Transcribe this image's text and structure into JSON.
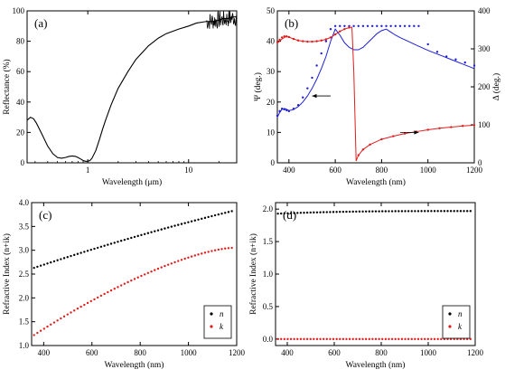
{
  "chart_data": [
    {
      "panel": "(a)",
      "type": "line",
      "xlabel": "Wavelength (μm)",
      "ylabel": "Reflectance (%)",
      "xscale": "log",
      "xlim": [
        0.25,
        30
      ],
      "ylim": [
        0,
        100
      ],
      "xticks": [
        1,
        10
      ],
      "yticks": [
        0,
        20,
        40,
        60,
        80,
        100
      ],
      "series": [
        {
          "color": "#000000",
          "x": [
            0.25,
            0.27,
            0.29,
            0.31,
            0.35,
            0.4,
            0.45,
            0.5,
            0.55,
            0.6,
            0.65,
            0.7,
            0.75,
            0.8,
            0.85,
            0.9,
            0.95,
            1.0,
            1.05,
            1.1,
            1.2,
            1.3,
            1.4,
            1.5,
            1.7,
            2.0,
            2.5,
            3.0,
            4.0,
            5.0,
            6.0,
            8.0,
            10.0,
            12.0,
            15.0,
            18.0,
            20.0,
            22.0,
            25.0,
            28.0,
            30.0
          ],
          "y": [
            28,
            30,
            29,
            26,
            19,
            11,
            6,
            3.5,
            3,
            3.5,
            4.2,
            4.5,
            4.3,
            3.5,
            2.5,
            1.5,
            1,
            1,
            1.5,
            3,
            8,
            15,
            22,
            28,
            38,
            49,
            60,
            68,
            77,
            82,
            85,
            88,
            90,
            92,
            93,
            93,
            94,
            95,
            95,
            96,
            96
          ]
        }
      ]
    },
    {
      "panel": "(b)",
      "type": "line",
      "xlabel": "Wavelength (nm)",
      "ylabel": "Ψ (deg.)",
      "y2label": "Δ (deg.)",
      "xlim": [
        350,
        1200
      ],
      "ylim": [
        0,
        50
      ],
      "y2lim": [
        0,
        400
      ],
      "xticks": [
        400,
        600,
        800,
        1000,
        1200
      ],
      "yticks": [
        0,
        10,
        20,
        30,
        40,
        50
      ],
      "y2ticks": [
        0,
        100,
        200,
        300,
        400
      ],
      "series": [
        {
          "axis": "left",
          "color": "#1f1fd6",
          "style": "line",
          "x": [
            350,
            360,
            370,
            380,
            390,
            400,
            420,
            440,
            460,
            480,
            500,
            520,
            540,
            560,
            580,
            600,
            620,
            640,
            660,
            680,
            700,
            720,
            740,
            760,
            780,
            800,
            820,
            840,
            860,
            880,
            900,
            950,
            1000,
            1050,
            1100,
            1150,
            1200
          ],
          "y": [
            15,
            16.5,
            17.6,
            17.9,
            17.6,
            17.2,
            17.5,
            18.5,
            20,
            22,
            24.5,
            27.5,
            31,
            35,
            40,
            44,
            42,
            39.5,
            38,
            37.2,
            37.2,
            38,
            39.5,
            41,
            42.5,
            43.5,
            44,
            43,
            42,
            41.2,
            40.5,
            38.7,
            37,
            35.5,
            34,
            32.5,
            31
          ]
        },
        {
          "axis": "left",
          "color": "#1f1fd6",
          "style": "dots",
          "x": [
            350,
            360,
            370,
            380,
            390,
            400,
            420,
            440,
            460,
            480,
            500,
            520,
            540,
            560,
            580,
            600,
            620,
            640,
            660,
            680,
            700,
            720,
            740,
            760,
            780,
            800,
            820,
            840,
            860,
            880,
            900,
            920,
            940,
            960,
            1000,
            1040,
            1080,
            1120,
            1160,
            1200
          ],
          "y": [
            15.5,
            17,
            17.8,
            17.6,
            17.3,
            17,
            17.8,
            19,
            21.5,
            24.5,
            28,
            32,
            36,
            40,
            44,
            45,
            45,
            45,
            45,
            45,
            45,
            45,
            45,
            45,
            45,
            45,
            45,
            45,
            45,
            45,
            45,
            45,
            45,
            45,
            39,
            36.5,
            35,
            34,
            33,
            32
          ]
        },
        {
          "axis": "right",
          "color": "#e11d1d",
          "style": "line",
          "x": [
            350,
            360,
            370,
            380,
            390,
            400,
            420,
            440,
            460,
            480,
            500,
            520,
            540,
            560,
            580,
            600,
            620,
            640,
            660,
            672,
            680,
            690,
            700,
            720,
            750,
            800,
            850,
            900,
            950,
            1000,
            1050,
            1100,
            1150,
            1200
          ],
          "y": [
            315,
            320,
            326,
            330,
            332,
            331,
            326,
            322,
            320,
            319,
            319,
            320,
            322,
            325,
            330,
            338,
            346,
            352,
            356,
            357,
            240,
            5,
            20,
            35,
            48,
            62,
            70,
            77,
            82,
            87,
            91,
            94,
            97,
            99
          ]
        },
        {
          "axis": "right",
          "color": "#e11d1d",
          "style": "dots",
          "x": [
            350,
            360,
            370,
            380,
            390,
            400,
            420,
            440,
            460,
            480,
            500,
            520,
            540,
            560,
            580,
            600,
            620,
            640,
            660,
            700,
            720,
            750,
            800,
            850,
            900,
            950,
            1000,
            1050,
            1100,
            1150,
            1200
          ],
          "y": [
            318,
            324,
            330,
            333,
            333,
            331,
            326,
            322,
            320,
            319,
            319,
            320,
            322,
            325,
            330,
            338,
            346,
            352,
            356,
            20,
            35,
            48,
            62,
            70,
            77,
            82,
            87,
            91,
            94,
            97,
            99
          ]
        }
      ]
    },
    {
      "panel": "(c)",
      "type": "scatter",
      "xlabel": "Wavelength (nm)",
      "ylabel": "Refractive Index (n+ik)",
      "xlim": [
        350,
        1200
      ],
      "ylim": [
        1.0,
        4.0
      ],
      "xticks": [
        400,
        600,
        800,
        1000,
        1200
      ],
      "yticks": [
        1.0,
        1.5,
        2.0,
        2.5,
        3.0,
        3.5,
        4.0
      ],
      "legend": "bottom-right",
      "series": [
        {
          "name": "n",
          "color": "#000000",
          "x_range": [
            360,
            1180
          ],
          "y_start": 2.63,
          "y_end": 3.82,
          "shape": "near-linear"
        },
        {
          "name": "k",
          "color": "#e11d1d",
          "x_range": [
            360,
            1180
          ],
          "y_start": 1.22,
          "y_end": 3.05,
          "shape": "concave"
        }
      ]
    },
    {
      "panel": "(d)",
      "type": "scatter",
      "xlabel": "Wavelength (nm)",
      "ylabel": "Refractive Index (n+ik)",
      "xlim": [
        350,
        1200
      ],
      "ylim": [
        -0.1,
        2.1
      ],
      "xticks": [
        400,
        600,
        800,
        1000,
        1200
      ],
      "yticks": [
        0.0,
        0.5,
        1.0,
        1.5,
        2.0
      ],
      "legend": "bottom-right",
      "series": [
        {
          "name": "n",
          "color": "#000000",
          "x_range": [
            360,
            1180
          ],
          "y_start": 1.93,
          "y_end": 1.97,
          "shape": "flat"
        },
        {
          "name": "k",
          "color": "#e11d1d",
          "x_range": [
            360,
            1180
          ],
          "y_start": 0.0,
          "y_end": 0.0,
          "shape": "flat"
        }
      ]
    }
  ]
}
